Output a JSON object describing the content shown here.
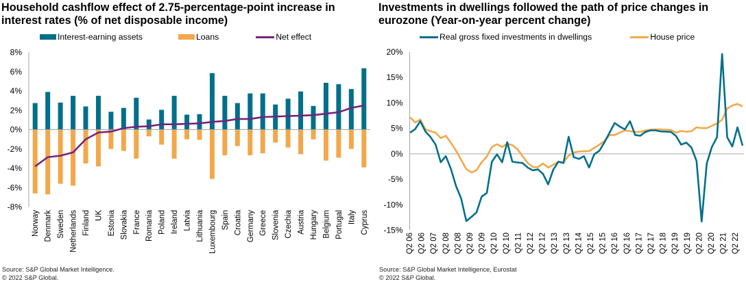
{
  "colors": {
    "assets": "#006F8A",
    "loans": "#F2A84A",
    "net": "#76237E",
    "investment": "#006F8A",
    "house_price": "#F2A84A",
    "axis": "#A6A6A6"
  },
  "footer": {
    "left_source": "Source: S&P Global Market Intelligence.",
    "left_copyright": "© 2022 S&P Global.",
    "right_source": "Source: S&P Global Market Intelligence, Eurostat",
    "right_copyright": "© 2022 S&P Global."
  },
  "chart_data": [
    {
      "type": "bar",
      "title": "Household cashflow effect of 2.75-percentage-point increase in interest rates (% of net disposable income)",
      "xlabel": "",
      "ylabel": "",
      "ylim": [
        -8,
        8
      ],
      "yticks": [
        8,
        6,
        4,
        2,
        0,
        -2,
        -4,
        -6,
        -8
      ],
      "ytick_labels": [
        "8%",
        "6%",
        "4%",
        "2%",
        "0%",
        "-2%",
        "-4%",
        "-6%",
        "-8%"
      ],
      "grid": false,
      "legend_position": "top",
      "categories": [
        "Norway",
        "Denmark",
        "Sweden",
        "Netherlands",
        "Finland",
        "UK",
        "Estonia",
        "Slovakia",
        "France",
        "Romania",
        "Poland",
        "Ireland",
        "Latvia",
        "Lithuania",
        "Luxembourg",
        "Spain",
        "Croatia",
        "Germany",
        "Greece",
        "Slovenia",
        "Czechia",
        "Austria",
        "Hungary",
        "Belgium",
        "Portugal",
        "Italy",
        "Cyprus"
      ],
      "series": [
        {
          "name": "Interest-earning assets",
          "kind": "bar",
          "values": [
            2.75,
            3.9,
            2.8,
            3.5,
            2.4,
            3.5,
            1.85,
            2.25,
            3.3,
            1.05,
            2.05,
            3.5,
            1.55,
            1.6,
            5.85,
            3.5,
            2.75,
            3.75,
            3.75,
            2.6,
            3.2,
            3.95,
            2.45,
            4.85,
            4.7,
            4.2,
            6.35
          ]
        },
        {
          "name": "Loans",
          "kind": "bar",
          "values": [
            -6.6,
            -6.7,
            -5.6,
            -5.8,
            -3.5,
            -3.8,
            -2.0,
            -2.2,
            -3.0,
            -0.7,
            -1.55,
            -3.0,
            -1.0,
            -1.05,
            -5.1,
            -2.65,
            -1.7,
            -2.65,
            -2.45,
            -1.35,
            -1.85,
            -2.55,
            -1.0,
            -3.2,
            -2.9,
            -2.0,
            -3.9
          ]
        },
        {
          "name": "Net effect",
          "kind": "line",
          "values": [
            -3.8,
            -2.85,
            -2.7,
            -2.35,
            -1.0,
            -0.3,
            -0.2,
            0.15,
            0.3,
            0.35,
            0.55,
            0.55,
            0.6,
            0.65,
            0.8,
            0.9,
            1.1,
            1.1,
            1.3,
            1.35,
            1.4,
            1.45,
            1.5,
            1.65,
            1.8,
            2.25,
            2.5
          ]
        }
      ]
    },
    {
      "type": "line",
      "title": "Investments in dwellings followed the path of price changes in eurozone (Year-on-year percent change)",
      "xlabel": "",
      "ylabel": "",
      "ylim": [
        -15,
        20
      ],
      "yticks": [
        20,
        15,
        10,
        5,
        0,
        -5,
        -10,
        -15
      ],
      "ytick_labels": [
        "20%",
        "15%",
        "10%",
        "5%",
        "0%",
        "-5%",
        "-10%",
        "-15%"
      ],
      "grid": false,
      "legend_position": "top",
      "x_tick_labels": [
        "Q2 06",
        "Q2 06",
        "Q2 07",
        "Q2 08",
        "Q2 08",
        "Q2 09",
        "Q2 09",
        "Q2 10",
        "Q2 10",
        "Q2 11",
        "Q2 12",
        "Q2 12",
        "Q2 13",
        "Q2 13",
        "Q2 14",
        "Q2 15",
        "Q2 15",
        "Q2 16",
        "Q2 16",
        "Q2 17",
        "Q2 17",
        "Q2 18",
        "Q2 19",
        "Q2 19",
        "Q2 20",
        "Q2 20",
        "Q2 21",
        "Q2 22"
      ],
      "x_range": "quarterly, 2006 to 2022",
      "series": [
        {
          "name": "Real gross fixed investments in dwellings",
          "values": [
            4.15,
            4.85,
            6.4,
            4.4,
            3.3,
            1.8,
            -1.65,
            -0.45,
            -3.0,
            -6.35,
            -8.8,
            -13.2,
            -12.4,
            -11.5,
            -8.4,
            -7.7,
            -1.55,
            -0.1,
            -1.65,
            2.3,
            -1.55,
            -1.7,
            -1.8,
            -2.7,
            -3.25,
            -3.05,
            -3.95,
            -6.0,
            -3.1,
            -1.55,
            -1.8,
            3.35,
            -0.65,
            -1.0,
            -0.45,
            -2.7,
            -0.1,
            0.6,
            2.25,
            4.15,
            6.05,
            5.35,
            4.8,
            6.4,
            3.7,
            3.55,
            4.3,
            4.6,
            4.6,
            4.4,
            4.35,
            4.3,
            3.5,
            1.8,
            2.2,
            1.25,
            -1.4,
            -13.3,
            -1.9,
            1.35,
            3.25,
            19.6,
            3.25,
            1.45,
            5.2,
            1.6
          ]
        },
        {
          "name": "House price",
          "values": [
            7.2,
            6.15,
            6.75,
            4.8,
            4.45,
            4.15,
            3.1,
            3.55,
            2.15,
            0.6,
            -1.2,
            -3.0,
            -3.65,
            -3.2,
            -1.65,
            -0.55,
            1.35,
            1.9,
            1.35,
            2.0,
            1.7,
            0.9,
            -0.45,
            -1.8,
            -2.6,
            -2.6,
            -1.9,
            -2.7,
            -2.15,
            -1.55,
            -1.7,
            -0.35,
            0.25,
            0.45,
            0.5,
            0.55,
            1.15,
            1.8,
            2.5,
            3.7,
            3.7,
            4.15,
            4.6,
            4.45,
            4.3,
            4.3,
            4.6,
            4.75,
            4.8,
            4.8,
            4.75,
            4.7,
            4.15,
            4.5,
            4.35,
            4.45,
            5.2,
            5.05,
            5.05,
            5.5,
            5.95,
            6.7,
            8.9,
            9.5,
            9.8,
            9.3
          ]
        }
      ]
    }
  ]
}
